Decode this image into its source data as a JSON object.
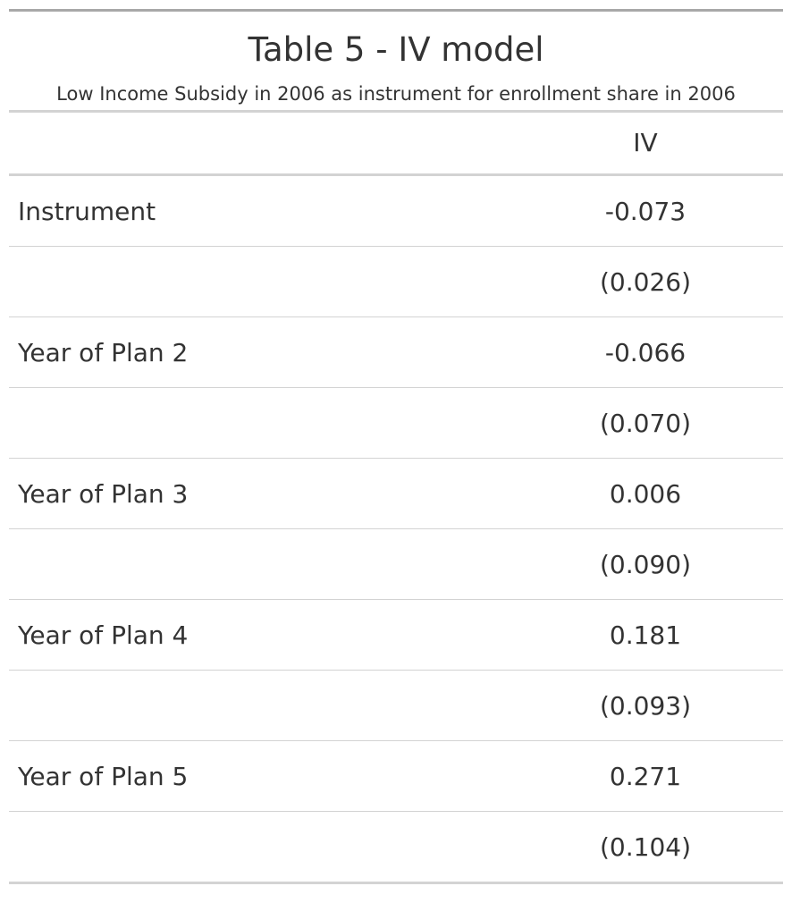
{
  "table": {
    "title": "Table 5 - IV model",
    "subtitle": "Low Income Subsidy in 2006 as instrument for enrollment share in 2006",
    "column_header": "IV",
    "rows": [
      {
        "label": "Instrument",
        "value": "-0.073"
      },
      {
        "label": "",
        "value": "(0.026)"
      },
      {
        "label": "Year of Plan 2",
        "value": "-0.066"
      },
      {
        "label": "",
        "value": "(0.070)"
      },
      {
        "label": "Year of Plan 3",
        "value": "0.006"
      },
      {
        "label": "",
        "value": "(0.090)"
      },
      {
        "label": "Year of Plan 4",
        "value": "0.181"
      },
      {
        "label": "",
        "value": "(0.093)"
      },
      {
        "label": "Year of Plan 5",
        "value": "0.271"
      },
      {
        "label": "",
        "value": "(0.104)"
      }
    ]
  }
}
